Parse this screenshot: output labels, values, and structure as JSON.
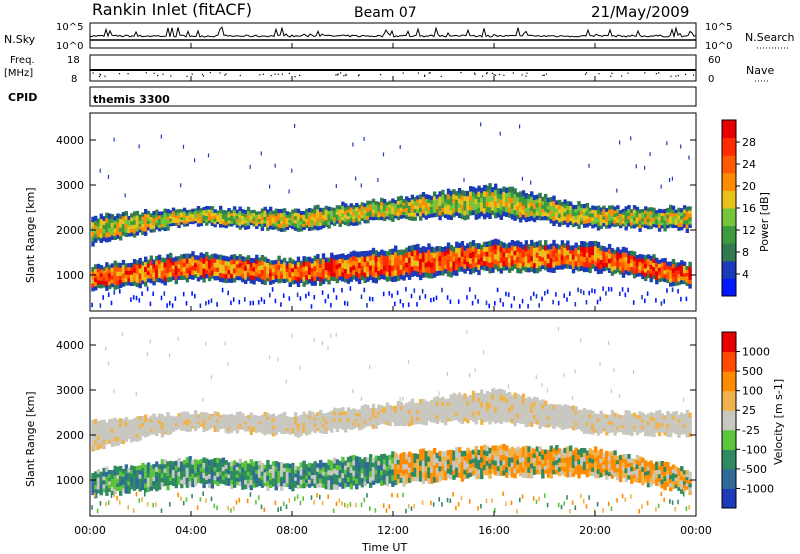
{
  "header": {
    "station": "Rankin Inlet (fitACF)",
    "beam": "Beam 07",
    "date": "21/May/2009"
  },
  "nsky_panel": {
    "left_label": "N.Sky",
    "left_ticks": [
      "10^5",
      "10^0"
    ],
    "right_ticks": [
      "10^5",
      "10^0"
    ],
    "right_label": "N.Search"
  },
  "freq_panel": {
    "left_label_top": "Freq.",
    "left_label_unit": "[MHz]",
    "left_ticks": [
      "18",
      "8"
    ],
    "right_ticks": [
      "60",
      "0"
    ],
    "right_label": "Nave"
  },
  "cpid_panel": {
    "label": "CPID",
    "mode": "themis 3300"
  },
  "chart_data": [
    {
      "type": "heatmap",
      "name": "power",
      "ylabel": "Slant Range [km]",
      "yticks": [
        "4000",
        "3000",
        "2000",
        "1000"
      ],
      "ylim": [
        200,
        4600
      ],
      "xlim": [
        0,
        24
      ],
      "colorbar": {
        "label": "Power [dB]",
        "ticks": [
          "28",
          "24",
          "20",
          "16",
          "12",
          "8",
          "4"
        ],
        "colors": [
          "#0018ff",
          "#1a3ab8",
          "#2f7a50",
          "#3e9a3e",
          "#74c43c",
          "#e8c21a",
          "#ff8c00",
          "#ff5a00",
          "#ff2a00",
          "#e80000"
        ]
      },
      "bands": [
        {
          "t": [
            0.0,
            24.0
          ],
          "lo": [
            1700,
            2150,
            2000,
            2250,
            2300,
            2050,
            2000
          ],
          "hi": [
            2300,
            2500,
            2450,
            2700,
            3000,
            2500,
            2500
          ],
          "class": "mid"
        },
        {
          "t": [
            0.0,
            24.0
          ],
          "lo": [
            650,
            900,
            800,
            900,
            1100,
            1100,
            700
          ],
          "hi": [
            1200,
            1500,
            1350,
            1600,
            1750,
            1700,
            1200
          ],
          "class": "strong"
        }
      ]
    },
    {
      "type": "heatmap",
      "name": "velocity",
      "ylabel": "Slant Range [km]",
      "yticks": [
        "4000",
        "3000",
        "2000",
        "1000"
      ],
      "ylim": [
        200,
        4600
      ],
      "xlim": [
        0,
        24
      ],
      "colorbar": {
        "label": "Velocity [m s-1]",
        "ticks": [
          "1000",
          "500",
          "100",
          "25",
          "-25",
          "-100",
          "-500",
          "-1000"
        ],
        "colors": [
          "#1f3ab8",
          "#2f6a9a",
          "#2f8a60",
          "#5cc43a",
          "#c8c8c0",
          "#f0b24a",
          "#ff8c00",
          "#ff4a00",
          "#e80000"
        ]
      },
      "xticks": [
        "00:00",
        "04:00",
        "08:00",
        "12:00",
        "16:00",
        "20:00",
        "00:00"
      ],
      "xlabel": "Time UT"
    }
  ]
}
